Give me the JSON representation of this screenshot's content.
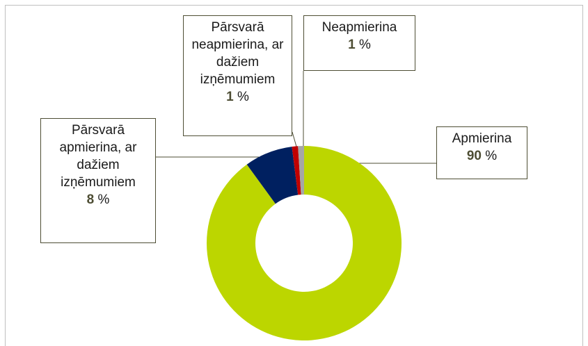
{
  "chart_data": {
    "type": "donut",
    "categories": [
      "Apmierina",
      "Pārsvarā apmierina, ar dažiem izņēmumiem",
      "Pārsvarā neapmierina, ar dažiem izņēmumiem",
      "Neapmierina"
    ],
    "values": [
      90,
      8,
      1,
      1
    ],
    "value_labels": [
      "90 %",
      "8 %",
      "1 %",
      "1 %"
    ],
    "colors": [
      "#bcd600",
      "#002060",
      "#c00000",
      "#a6a6a6"
    ]
  }
}
